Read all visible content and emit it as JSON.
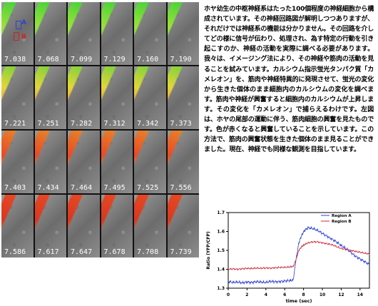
{
  "frames": [
    "7.038",
    "7.068",
    "7.099",
    "7.129",
    "7.160",
    "7.190",
    "7.221",
    "7.251",
    "7.282",
    "7.312",
    "7.342",
    "7.373",
    "7.403",
    "7.434",
    "7.464",
    "7.495",
    "7.525",
    "7.556",
    "7.586",
    "7.617",
    "7.647",
    "7.678",
    "7.708",
    "7.739"
  ],
  "frame_labels": {
    "a": "A",
    "b": "B"
  },
  "description": "ホヤ幼生の中枢神経系はたった100個程度の神経細胞から構成されています。その神経回路図が解明しつつありますが、それだけでは神経系の機能は分かりません。その回路を介してどの様に信号が伝わり、処理され、為す特定の行動を引き起こすのか、神経の活動を実際に調べる必要があります。我々は、イメージング法により、その神経や筋肉の活動を見ることを試みています。カルシウム指示蛍光タンパク質「カメレオン」を、筋肉や神経特異的に発現させて、蛍光の変化から生きた個体のまま細胞内のカルシウムの変化を調べます。筋肉や神経が興奮すると細胞内のカルシウムが上昇します。その変化を「カメレオン」で捕らえるわけです。左図は、ホヤの尾部の運動に伴う、筋肉細胞の興奮を見たものです。色が赤くなると興奮していることを示しています。この方法で、筋肉の興奮状態を生きた個体のまま見ることができました。現在、神経でも同様な観測を目指しています。",
  "chart_data": {
    "type": "line",
    "xlabel": "time (sec)",
    "ylabel": "Ratio (YFP/CFP)",
    "xlim": [
      0,
      15
    ],
    "ylim": [
      1.3,
      1.7
    ],
    "xticks": [
      "0",
      "2",
      "4",
      "6",
      "8",
      "10",
      "12",
      "14"
    ],
    "yticks": [
      "1.3",
      "1.4",
      "1.5",
      "1.6",
      "1.7"
    ],
    "legend_position": "top-right",
    "grid": false,
    "series": [
      {
        "name": "Region A",
        "color": "#2b3fd6",
        "x": [
          0,
          0.5,
          1,
          1.5,
          2,
          2.5,
          3,
          3.5,
          4,
          4.5,
          5,
          5.5,
          6,
          6.5,
          6.9,
          7.2,
          7.5,
          7.8,
          8.1,
          8.5,
          9,
          9.5,
          10,
          10.5,
          11,
          11.5,
          12,
          12.5,
          13,
          13.5,
          14,
          14.5,
          15
        ],
        "y": [
          1.335,
          1.33,
          1.332,
          1.328,
          1.333,
          1.33,
          1.335,
          1.332,
          1.33,
          1.336,
          1.334,
          1.335,
          1.338,
          1.34,
          1.342,
          1.45,
          1.54,
          1.58,
          1.605,
          1.62,
          1.615,
          1.605,
          1.59,
          1.575,
          1.56,
          1.545,
          1.525,
          1.51,
          1.49,
          1.47,
          1.455,
          1.44,
          1.425
        ]
      },
      {
        "name": "Region B",
        "color": "#cc2a3a",
        "x": [
          0,
          0.5,
          1,
          1.5,
          2,
          2.5,
          3,
          3.5,
          4,
          4.5,
          5,
          5.5,
          6,
          6.5,
          6.9,
          7.2,
          7.5,
          7.8,
          8.1,
          8.5,
          9,
          9.5,
          10,
          10.5,
          11,
          11.5,
          12,
          12.5,
          13,
          13.5,
          14,
          14.5,
          15
        ],
        "y": [
          1.4,
          1.402,
          1.4,
          1.403,
          1.405,
          1.404,
          1.406,
          1.405,
          1.407,
          1.406,
          1.408,
          1.41,
          1.41,
          1.412,
          1.415,
          1.45,
          1.5,
          1.52,
          1.53,
          1.54,
          1.545,
          1.545,
          1.54,
          1.535,
          1.53,
          1.52,
          1.51,
          1.505,
          1.5,
          1.495,
          1.49,
          1.485,
          1.48
        ]
      }
    ]
  }
}
